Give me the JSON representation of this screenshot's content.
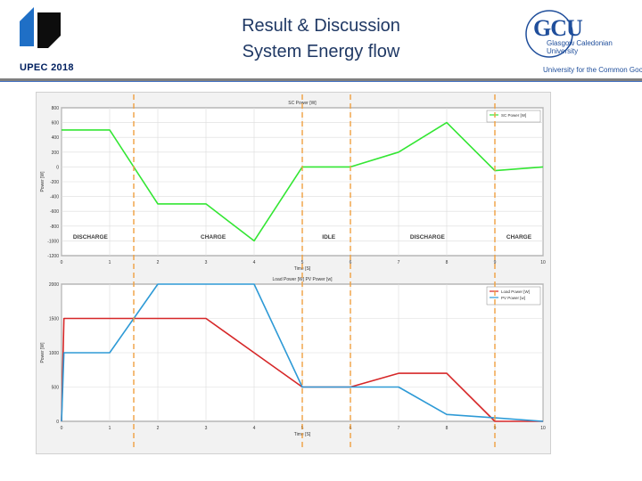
{
  "header": {
    "title_line1": "Result & Discussion",
    "title_line2": "System Energy flow",
    "left_logo": {
      "text": "UPEC 2018",
      "color": "#002060"
    },
    "right_logo": {
      "abbr": "GCU",
      "name": "Glasgow Caledonian University",
      "tagline": "University for the Common Good"
    }
  },
  "chart_data": [
    {
      "type": "line",
      "title": "SC Power [W]",
      "xlabel": "Time [S]",
      "ylabel": "Power [W]",
      "xlim": [
        0,
        10
      ],
      "ylim": [
        -1200,
        800
      ],
      "xticks": [
        0,
        1,
        2,
        3,
        4,
        5,
        6,
        7,
        8,
        9,
        10
      ],
      "yticks": [
        800,
        600,
        400,
        200,
        0,
        -200,
        -400,
        -600,
        -800,
        -1000,
        -1200
      ],
      "grid": true,
      "legend": "top-right",
      "series": [
        {
          "name": "SC Power [W]",
          "color": "#33e633",
          "x": [
            0,
            1,
            2,
            3,
            4,
            5,
            6,
            7,
            8,
            9,
            10
          ],
          "y": [
            500,
            500,
            -500,
            -500,
            -1000,
            0,
            0,
            200,
            600,
            -50,
            0
          ]
        }
      ],
      "annotations": [
        {
          "text": "DISCHARGE",
          "x": 0.6,
          "y": -970
        },
        {
          "text": "CHARGE",
          "x": 3.15,
          "y": -970
        },
        {
          "text": "IDLE",
          "x": 5.55,
          "y": -970
        },
        {
          "text": "DISCHARGE",
          "x": 7.6,
          "y": -970
        },
        {
          "text": "CHARGE",
          "x": 9.5,
          "y": -970
        }
      ],
      "dividers_x": [
        1.5,
        5,
        6,
        9
      ]
    },
    {
      "type": "line",
      "title": "Load Power [W]  PV Power  [w]",
      "xlabel": "Time [S]",
      "ylabel": "Power [W]",
      "xlim": [
        0,
        10
      ],
      "ylim": [
        0,
        2000
      ],
      "xticks": [
        0,
        1,
        2,
        3,
        4,
        5,
        6,
        7,
        8,
        9,
        10
      ],
      "yticks": [
        2000,
        1500,
        1000,
        500,
        0
      ],
      "grid": true,
      "legend": "top-right",
      "series": [
        {
          "name": "Load Power [W]",
          "color": "#d62728",
          "x": [
            0,
            0.05,
            1,
            2,
            3,
            4,
            5,
            6,
            7,
            8,
            9,
            10
          ],
          "y": [
            0,
            1500,
            1500,
            1500,
            1500,
            1000,
            500,
            500,
            700,
            700,
            0,
            0
          ]
        },
        {
          "name": "PV Power  [w]",
          "color": "#2e9ad6",
          "x": [
            0,
            0.05,
            1,
            2,
            3,
            4,
            5,
            6,
            7,
            8,
            9,
            10
          ],
          "y": [
            0,
            1000,
            1000,
            2000,
            2000,
            2000,
            500,
            500,
            500,
            100,
            50,
            0
          ]
        }
      ],
      "dividers_x": [
        1.5,
        5,
        6,
        9
      ]
    }
  ]
}
